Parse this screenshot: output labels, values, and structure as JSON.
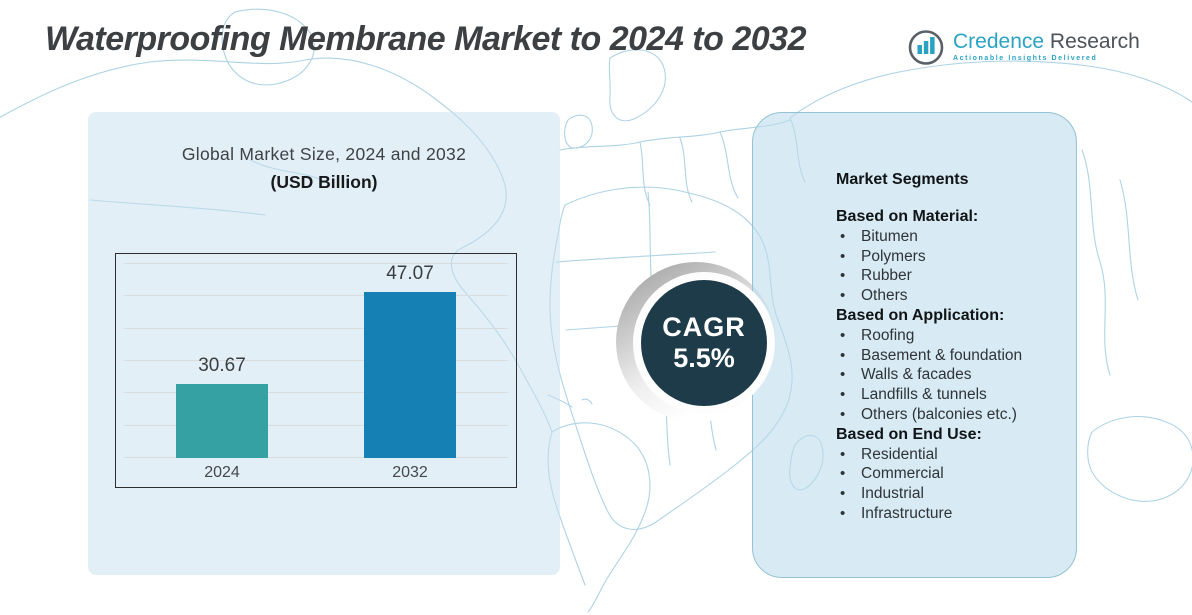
{
  "header": {
    "title": "Waterproofing Membrane Market to 2024 to 2032",
    "logo": {
      "brand_primary": "Credence",
      "brand_secondary": "Research",
      "tagline": "Actionable Insights Delivered"
    }
  },
  "chart_panel": {
    "subtitle_line1": "Global Market Size, 2024 and 2032",
    "subtitle_line2": "(USD Billion)"
  },
  "chart_data": {
    "type": "bar",
    "title": "Global Market Size, 2024 and 2032 (USD Billion)",
    "categories": [
      "2024",
      "2032"
    ],
    "values": [
      30.67,
      47.07
    ],
    "value_labels": [
      "30.67",
      "47.07"
    ],
    "bar_colors": [
      "#35a1a3",
      "#1480b4"
    ],
    "ylim": [
      17.5,
      53.6
    ],
    "gridline_count": 7,
    "grid": true,
    "legend": false,
    "xlabel": "",
    "ylabel": ""
  },
  "cagr": {
    "label": "CAGR",
    "value": "5.5%"
  },
  "segments": {
    "heading": "Market Segments",
    "sections": [
      {
        "title": "Based on Material:",
        "items": [
          "Bitumen",
          "Polymers",
          "Rubber",
          "Others"
        ]
      },
      {
        "title": "Based on Application:",
        "items": [
          "Roofing",
          "Basement & foundation",
          "Walls & facades",
          "Landfills & tunnels",
          "Others (balconies etc.)"
        ]
      },
      {
        "title": "Based on End Use:",
        "items": [
          "Residential",
          "Commercial",
          "Industrial",
          "Infrastructure"
        ]
      }
    ]
  },
  "colors": {
    "accent_teal": "#35a1a3",
    "accent_blue": "#1480b4",
    "cagr_circle": "#1e3b49",
    "map_line": "#aed3e5",
    "panel_fill": "#dcebf4",
    "brand_teal": "#2aa3c4"
  }
}
